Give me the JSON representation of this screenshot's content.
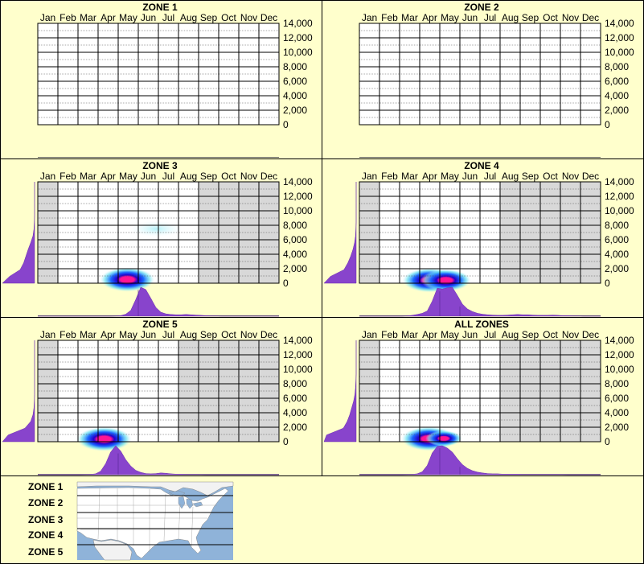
{
  "months": [
    "Jan",
    "Feb",
    "Mar",
    "Apr",
    "May",
    "Jun",
    "Jul",
    "Aug",
    "Sep",
    "Oct",
    "Nov",
    "Dec"
  ],
  "y_ticks": [
    "14,000",
    "12,000",
    "10,000",
    "8,000",
    "6,000",
    "4,000",
    "2,000",
    "0"
  ],
  "colors": {
    "background": "#ffffcc",
    "border": "#000000",
    "plot_bg": "#ffffff",
    "shade": "#d8d8d8",
    "profile": "#8844cc",
    "heat_core": "#ff1493",
    "heat_mid": "#0000cc",
    "heat_outer": "#00e5ff",
    "water": "#8fb3d9",
    "land": "#ffffff"
  },
  "chart_data": [
    {
      "type": "heatmap",
      "title": "ZONE 1",
      "xlabel": "",
      "ylabel": "",
      "categories": [
        "Jan",
        "Feb",
        "Mar",
        "Apr",
        "May",
        "Jun",
        "Jul",
        "Aug",
        "Sep",
        "Oct",
        "Nov",
        "Dec"
      ],
      "ylim": [
        0,
        14000
      ],
      "grid": true,
      "shaded_months": [],
      "has_data": false,
      "hotspots": [],
      "month_profile": [],
      "elev_profile": []
    },
    {
      "type": "heatmap",
      "title": "ZONE 2",
      "xlabel": "",
      "ylabel": "",
      "categories": [
        "Jan",
        "Feb",
        "Mar",
        "Apr",
        "May",
        "Jun",
        "Jul",
        "Aug",
        "Sep",
        "Oct",
        "Nov",
        "Dec"
      ],
      "ylim": [
        0,
        14000
      ],
      "grid": true,
      "shaded_months": [],
      "has_data": false,
      "hotspots": [],
      "month_profile": [],
      "elev_profile": []
    },
    {
      "type": "heatmap",
      "title": "ZONE 3",
      "xlabel": "",
      "ylabel": "",
      "categories": [
        "Jan",
        "Feb",
        "Mar",
        "Apr",
        "May",
        "Jun",
        "Jul",
        "Aug",
        "Sep",
        "Oct",
        "Nov",
        "Dec"
      ],
      "ylim": [
        0,
        14000
      ],
      "grid": true,
      "shaded_months": [
        0,
        8,
        9,
        10,
        11
      ],
      "has_data": true,
      "hotspots": [
        {
          "month": 4.45,
          "elev": 500,
          "intensity": 1.0
        },
        {
          "month": 5.9,
          "elev": 7500,
          "intensity": 0.15
        }
      ],
      "month_profile": [
        0,
        0,
        0,
        0,
        0,
        0,
        0,
        0,
        0,
        0,
        0,
        0,
        0,
        0,
        0,
        0.005,
        0.02,
        0.07,
        0.2,
        0.58,
        1.0,
        0.92,
        0.62,
        0.3,
        0.14,
        0.08,
        0.06,
        0.05,
        0.05,
        0.06,
        0.05,
        0.04,
        0.03,
        0.02,
        0.01,
        0.01,
        0,
        0,
        0,
        0,
        0,
        0,
        0,
        0,
        0,
        0,
        0,
        0
      ],
      "elev_profile": [
        1.0,
        0.78,
        0.45,
        0.34,
        0.27,
        0.2,
        0.12,
        0.05,
        0.02,
        0.01,
        0,
        0,
        0,
        0,
        0,
        0
      ]
    },
    {
      "type": "heatmap",
      "title": "ZONE 4",
      "xlabel": "",
      "ylabel": "",
      "categories": [
        "Jan",
        "Feb",
        "Mar",
        "Apr",
        "May",
        "Jun",
        "Jul",
        "Aug",
        "Sep",
        "Oct",
        "Nov",
        "Dec"
      ],
      "ylim": [
        0,
        14000
      ],
      "grid": true,
      "shaded_months": [
        0,
        7,
        8,
        9,
        10,
        11
      ],
      "has_data": true,
      "hotspots": [
        {
          "month": 3.5,
          "elev": 400,
          "intensity": 1.0
        },
        {
          "month": 4.3,
          "elev": 400,
          "intensity": 0.9
        }
      ],
      "month_profile": [
        0,
        0,
        0,
        0,
        0,
        0,
        0,
        0,
        0,
        0.01,
        0.03,
        0.06,
        0.1,
        0.18,
        0.52,
        0.97,
        0.94,
        0.98,
        1.0,
        0.72,
        0.42,
        0.25,
        0.16,
        0.1,
        0.07,
        0.05,
        0.04,
        0.03,
        0.03,
        0.04,
        0.05,
        0.06,
        0.05,
        0.05,
        0.04,
        0.03,
        0.03,
        0.03,
        0.04,
        0.03,
        0.02,
        0.02,
        0.01,
        0.01,
        0,
        0,
        0,
        0
      ],
      "elev_profile": [
        1.0,
        0.8,
        0.38,
        0.26,
        0.17,
        0.1,
        0.05,
        0.02,
        0.01,
        0,
        0,
        0,
        0,
        0,
        0,
        0
      ]
    },
    {
      "type": "heatmap",
      "title": "ZONE 5",
      "xlabel": "",
      "ylabel": "",
      "categories": [
        "Jan",
        "Feb",
        "Mar",
        "Apr",
        "May",
        "Jun",
        "Jul",
        "Aug",
        "Sep",
        "Oct",
        "Nov",
        "Dec"
      ],
      "ylim": [
        0,
        14000
      ],
      "grid": true,
      "shaded_months": [
        0,
        7,
        8,
        9,
        10,
        11
      ],
      "has_data": true,
      "hotspots": [
        {
          "month": 3.3,
          "elev": 350,
          "intensity": 1.0
        }
      ],
      "month_profile": [
        0,
        0,
        0,
        0,
        0,
        0,
        0,
        0,
        0,
        0.005,
        0.01,
        0.03,
        0.12,
        0.38,
        0.78,
        1.0,
        0.82,
        0.52,
        0.3,
        0.15,
        0.08,
        0.04,
        0.03,
        0.04,
        0.06,
        0.05,
        0.03,
        0.02,
        0.02,
        0.01,
        0.01,
        0.01,
        0.005,
        0,
        0,
        0,
        0,
        0,
        0,
        0,
        0,
        0,
        0,
        0,
        0,
        0,
        0,
        0
      ],
      "elev_profile": [
        1.0,
        0.82,
        0.3,
        0.12,
        0.05,
        0.02,
        0.01,
        0,
        0,
        0,
        0,
        0,
        0,
        0,
        0,
        0
      ]
    },
    {
      "type": "heatmap",
      "title": "ALL ZONES",
      "xlabel": "",
      "ylabel": "",
      "categories": [
        "Jan",
        "Feb",
        "Mar",
        "Apr",
        "May",
        "Jun",
        "Jul",
        "Aug",
        "Sep",
        "Oct",
        "Nov",
        "Dec"
      ],
      "ylim": [
        0,
        14000
      ],
      "grid": true,
      "shaded_months": [
        0,
        7,
        8,
        9,
        10,
        11
      ],
      "has_data": true,
      "hotspots": [
        {
          "month": 3.45,
          "elev": 400,
          "intensity": 1.0
        },
        {
          "month": 4.2,
          "elev": 450,
          "intensity": 0.6
        }
      ],
      "month_profile": [
        0,
        0,
        0,
        0,
        0,
        0,
        0,
        0,
        0,
        0.005,
        0.01,
        0.03,
        0.1,
        0.32,
        0.75,
        0.98,
        1.0,
        0.92,
        0.78,
        0.55,
        0.35,
        0.22,
        0.14,
        0.09,
        0.06,
        0.04,
        0.03,
        0.03,
        0.02,
        0.02,
        0.02,
        0.02,
        0.01,
        0.01,
        0.01,
        0.01,
        0.01,
        0.01,
        0.01,
        0.01,
        0.005,
        0,
        0,
        0,
        0,
        0,
        0,
        0
      ],
      "elev_profile": [
        1.0,
        0.92,
        0.4,
        0.28,
        0.2,
        0.14,
        0.08,
        0.04,
        0.02,
        0.01,
        0,
        0,
        0,
        0,
        0,
        0
      ]
    }
  ],
  "legend": {
    "zones": [
      "ZONE 1",
      "ZONE 2",
      "ZONE 3",
      "ZONE 4",
      "ZONE 5"
    ]
  }
}
